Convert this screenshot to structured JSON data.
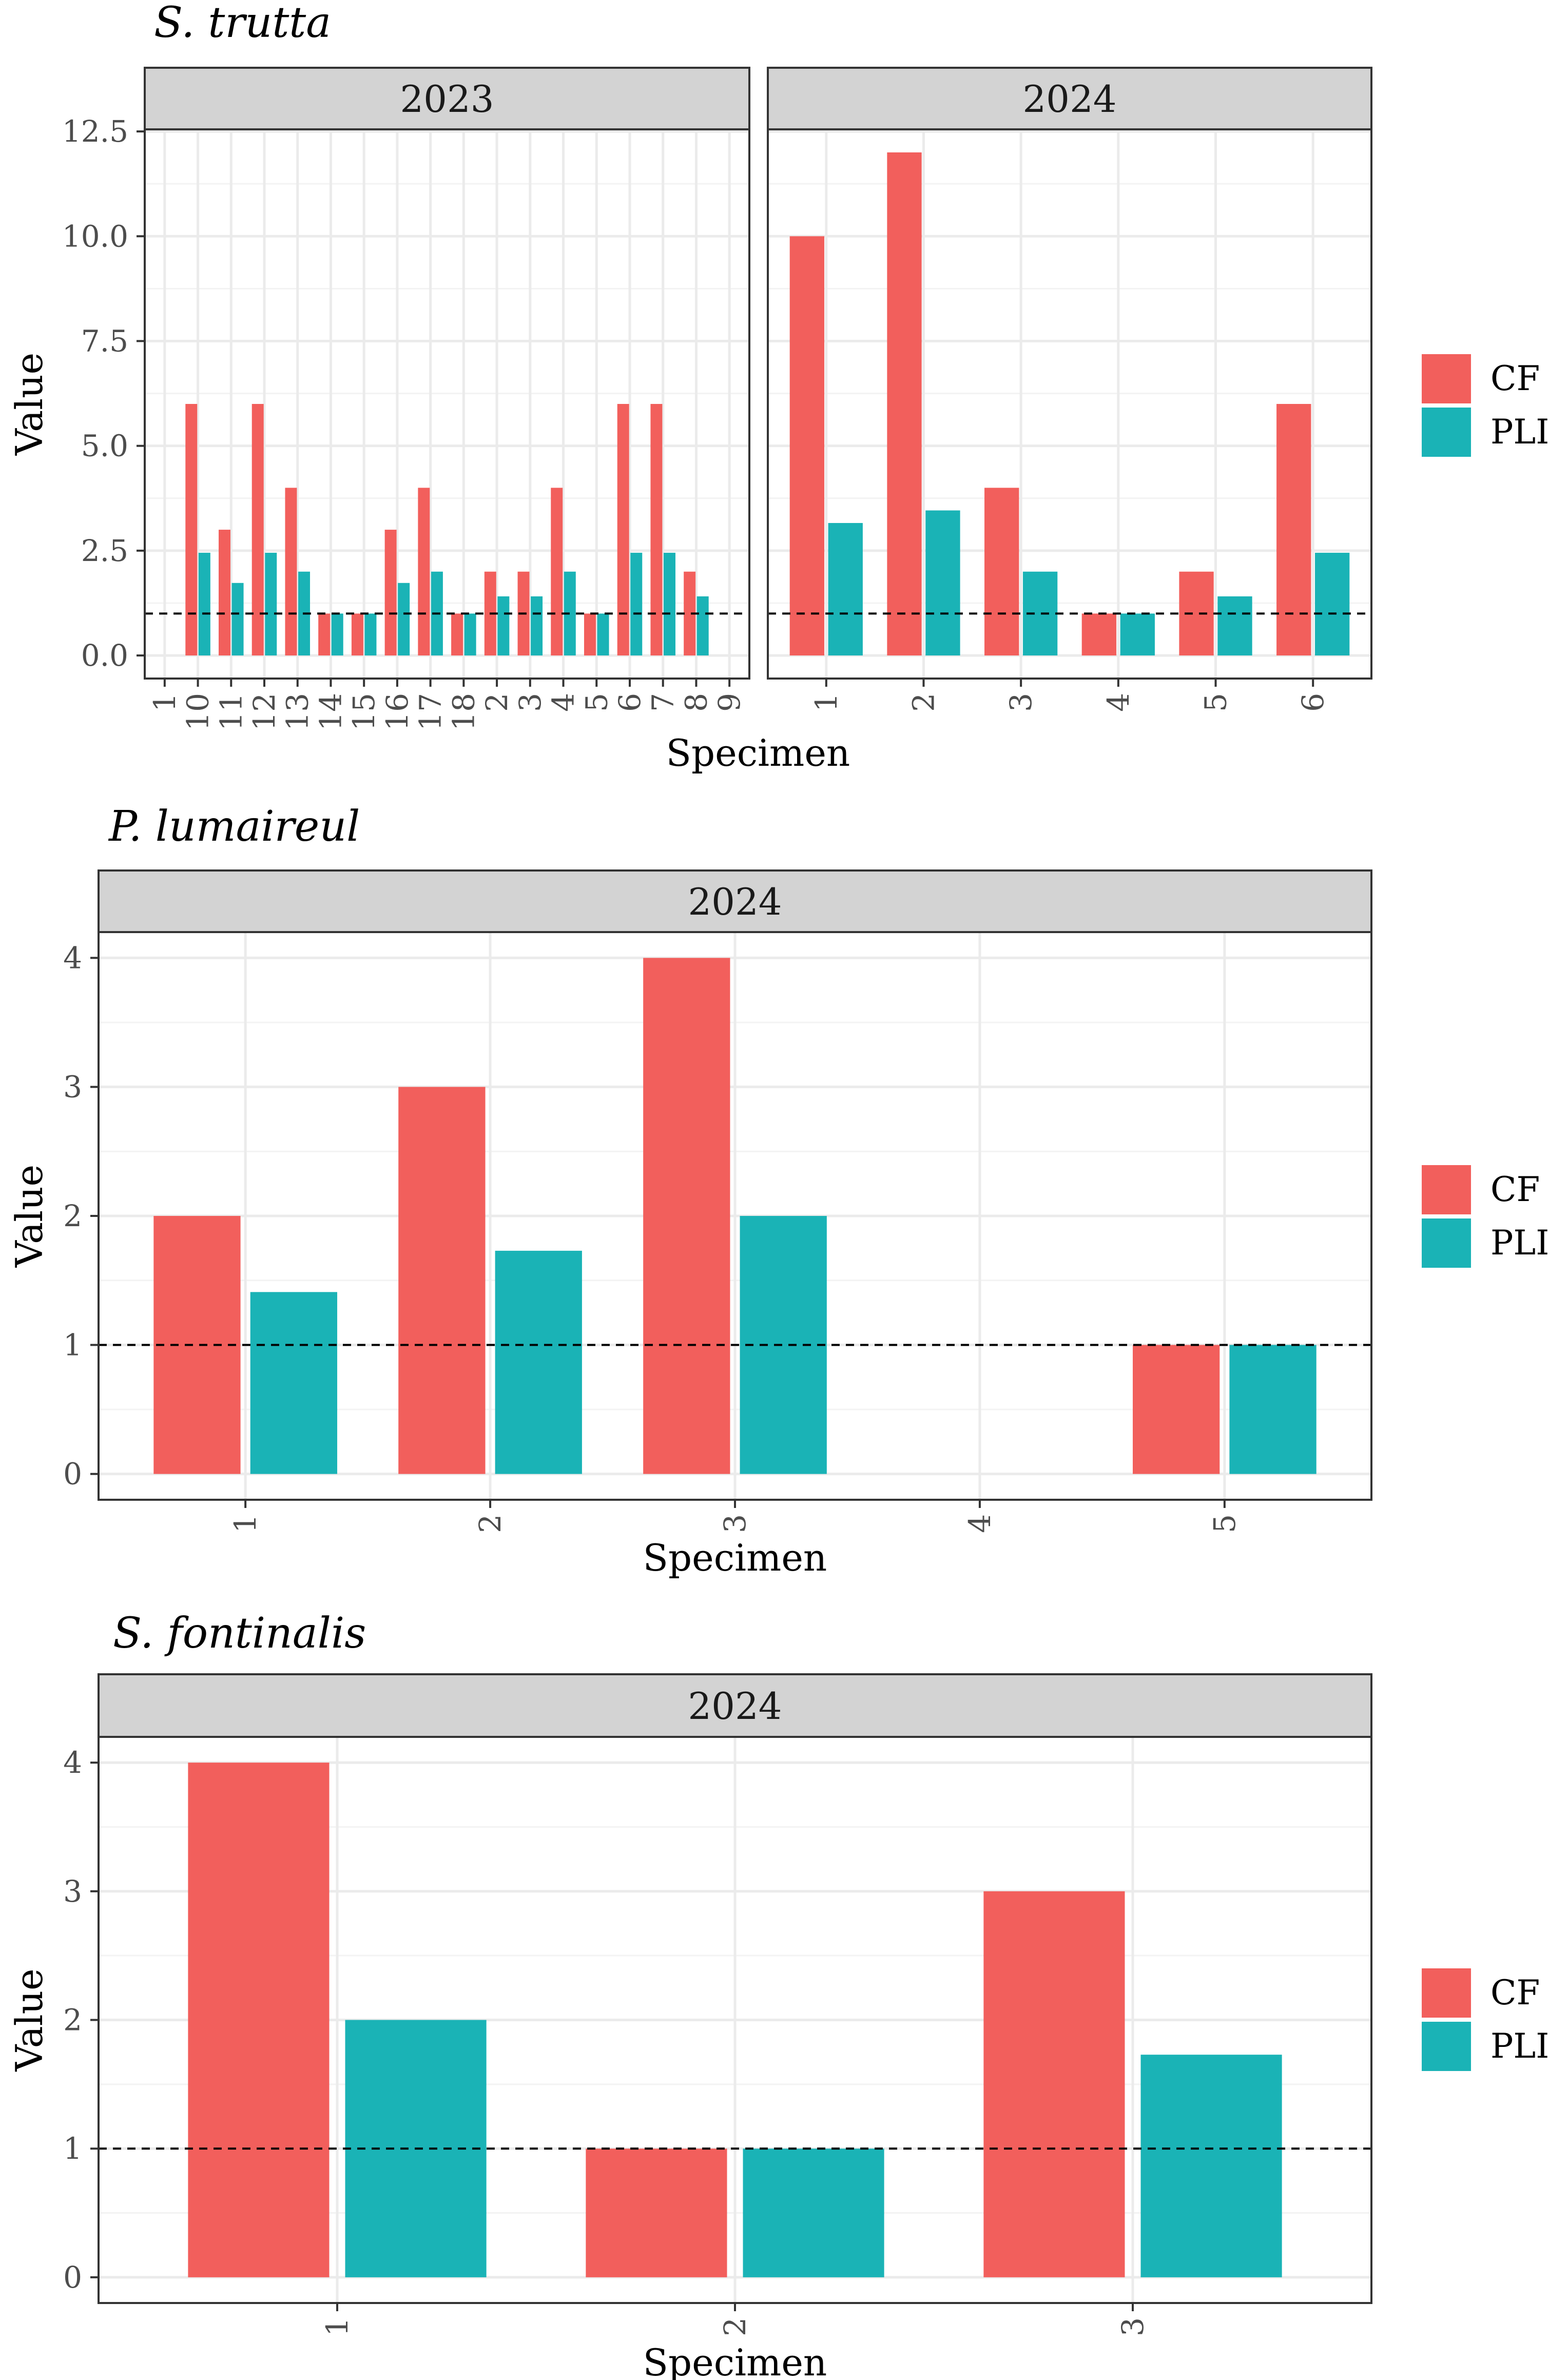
{
  "colors": {
    "cf": "#F25F5C",
    "pli": "#1AB3B6",
    "strip_fill": "#D3D3D3",
    "panel_border": "#333333",
    "grid_major": "#EBEBEB",
    "grid_minor": "#F3F3F3",
    "reference_line": "#000000"
  },
  "chart_data": [
    {
      "type": "bar",
      "title": "S. trutta",
      "xlabel": "Specimen",
      "ylabel": "Value",
      "ylim": [
        -0.55,
        12.55
      ],
      "yticks": [
        0.0,
        2.5,
        5.0,
        7.5,
        10.0,
        12.5
      ],
      "ytick_labels": [
        "0.0",
        "2.5",
        "5.0",
        "7.5",
        "10.0",
        "12.5"
      ],
      "reference_line": 1,
      "legend": {
        "position": "right",
        "entries": [
          "CF",
          "PLI"
        ]
      },
      "facets": [
        {
          "label": "2023",
          "categories": [
            "1",
            "10",
            "11",
            "12",
            "13",
            "14",
            "15",
            "16",
            "17",
            "18",
            "2",
            "3",
            "4",
            "5",
            "6",
            "7",
            "8",
            "9"
          ],
          "series": [
            {
              "name": "CF",
              "values": [
                null,
                6,
                3,
                6,
                4,
                1,
                1,
                3,
                4,
                1,
                2,
                2,
                4,
                1,
                6,
                6,
                2,
                null
              ]
            },
            {
              "name": "PLI",
              "values": [
                null,
                2.45,
                1.73,
                2.45,
                2,
                1,
                1,
                1.73,
                2,
                1,
                1.41,
                1.41,
                2,
                1,
                2.45,
                2.45,
                1.41,
                null
              ]
            }
          ]
        },
        {
          "label": "2024",
          "categories": [
            "1",
            "2",
            "3",
            "4",
            "5",
            "6"
          ],
          "series": [
            {
              "name": "CF",
              "values": [
                10,
                12,
                4,
                1,
                2,
                6
              ]
            },
            {
              "name": "PLI",
              "values": [
                3.16,
                3.46,
                2,
                1,
                1.41,
                2.45
              ]
            }
          ]
        }
      ]
    },
    {
      "type": "bar",
      "title": "P. lumaireul",
      "xlabel": "Specimen",
      "ylabel": "Value",
      "ylim": [
        -0.2,
        4.2
      ],
      "yticks": [
        0,
        1,
        2,
        3,
        4
      ],
      "ytick_labels": [
        "0",
        "1",
        "2",
        "3",
        "4"
      ],
      "reference_line": 1,
      "legend": {
        "position": "right",
        "entries": [
          "CF",
          "PLI"
        ]
      },
      "facets": [
        {
          "label": "2024",
          "categories": [
            "1",
            "2",
            "3",
            "4",
            "5"
          ],
          "series": [
            {
              "name": "CF",
              "values": [
                2,
                3,
                4,
                null,
                1
              ]
            },
            {
              "name": "PLI",
              "values": [
                1.41,
                1.73,
                2,
                null,
                1
              ]
            }
          ]
        }
      ]
    },
    {
      "type": "bar",
      "title": "S. fontinalis",
      "xlabel": "Specimen",
      "ylabel": "Value",
      "ylim": [
        -0.2,
        4.2
      ],
      "yticks": [
        0,
        1,
        2,
        3,
        4
      ],
      "ytick_labels": [
        "0",
        "1",
        "2",
        "3",
        "4"
      ],
      "reference_line": 1,
      "legend": {
        "position": "right",
        "entries": [
          "CF",
          "PLI"
        ]
      },
      "facets": [
        {
          "label": "2024",
          "categories": [
            "1",
            "2",
            "3"
          ],
          "series": [
            {
              "name": "CF",
              "values": [
                4,
                1,
                3
              ]
            },
            {
              "name": "PLI",
              "values": [
                2,
                1,
                1.73
              ]
            }
          ]
        }
      ]
    }
  ]
}
